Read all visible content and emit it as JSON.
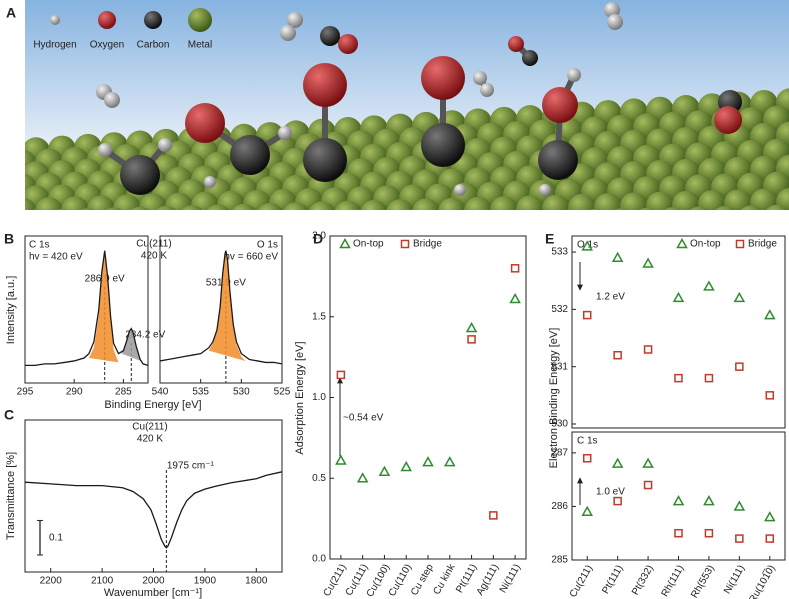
{
  "illustration": {
    "panel": "A",
    "legend": [
      "Hydrogen",
      "Oxygen",
      "Carbon",
      "Metal"
    ]
  },
  "chart_data": [
    {
      "type": "line",
      "panel": "B",
      "title": "C 1s",
      "subtitle": "hv = 420 eV",
      "annotations": [
        "Cu(211)",
        "420 K"
      ],
      "xlabel": "Binding Energy [eV]",
      "ylabel": "Intensity [a.u.]",
      "xlim": [
        295,
        282.5
      ],
      "xticks": [
        295,
        290,
        285
      ],
      "ylim": [
        0,
        1
      ],
      "peaks": [
        {
          "value": 286.9,
          "label": "286.9 eV"
        },
        {
          "value": 284.2,
          "label": "284.2 eV"
        }
      ],
      "components": [
        {
          "color": "#f28c28",
          "x": [
            288.5,
            288,
            287.5,
            287.2,
            286.9,
            286.6,
            286.3,
            286,
            285.5
          ],
          "values": [
            0.17,
            0.24,
            0.46,
            0.72,
            0.88,
            0.7,
            0.42,
            0.23,
            0.14
          ]
        },
        {
          "color": "#9a9a9a",
          "x": [
            285.2,
            284.8,
            284.5,
            284.2,
            283.9,
            283.6,
            283.2
          ],
          "values": [
            0.2,
            0.26,
            0.33,
            0.36,
            0.32,
            0.24,
            0.15
          ]
        }
      ],
      "series": [
        {
          "color": "#1a1a1a",
          "x": [
            295,
            294,
            293,
            292,
            291,
            290,
            289,
            288.5,
            288,
            287.5,
            287.2,
            286.9,
            286.6,
            286.3,
            286,
            285.5,
            285,
            284.7,
            284.4,
            284.2,
            284,
            283.7,
            283.3,
            283,
            282.5
          ],
          "values": [
            0.12,
            0.12,
            0.13,
            0.13,
            0.14,
            0.15,
            0.17,
            0.2,
            0.28,
            0.5,
            0.75,
            0.9,
            0.72,
            0.45,
            0.27,
            0.2,
            0.22,
            0.28,
            0.35,
            0.37,
            0.34,
            0.25,
            0.16,
            0.13,
            0.12
          ]
        }
      ]
    },
    {
      "type": "line",
      "title": "O 1s",
      "subtitle": "hv = 660 eV",
      "xlim": [
        540,
        525
      ],
      "xticks": [
        540,
        535,
        530,
        525
      ],
      "ylim": [
        0,
        1
      ],
      "peaks": [
        {
          "value": 531.9,
          "label": "531.9 eV"
        }
      ],
      "components": [
        {
          "color": "#f28c28",
          "x": [
            534,
            533.5,
            533,
            532.6,
            532.3,
            532,
            531.9,
            531.7,
            531.4,
            531,
            530.6,
            530,
            529.5
          ],
          "values": [
            0.22,
            0.27,
            0.35,
            0.5,
            0.72,
            0.86,
            0.88,
            0.82,
            0.6,
            0.38,
            0.26,
            0.18,
            0.15
          ]
        }
      ],
      "series": [
        {
          "color": "#1a1a1a",
          "x": [
            540,
            539,
            538,
            537,
            536,
            535,
            534,
            533.5,
            533,
            532.6,
            532.3,
            532,
            531.9,
            531.7,
            531.4,
            531,
            530.6,
            530,
            529,
            528,
            527,
            526,
            525
          ],
          "values": [
            0.15,
            0.16,
            0.17,
            0.18,
            0.19,
            0.2,
            0.24,
            0.28,
            0.36,
            0.52,
            0.74,
            0.88,
            0.9,
            0.84,
            0.62,
            0.4,
            0.28,
            0.2,
            0.16,
            0.15,
            0.14,
            0.14,
            0.13
          ]
        }
      ]
    },
    {
      "type": "line",
      "panel": "C",
      "annotations": [
        "Cu(211)",
        "420 K"
      ],
      "xlabel": "Wavenumber [cm⁻¹]",
      "ylabel": "Transmittance [%]",
      "xlim": [
        2250,
        1750
      ],
      "xticks": [
        2200,
        2100,
        2000,
        1900,
        1800
      ],
      "ylim": [
        -0.26,
        0.18
      ],
      "peaks": [
        {
          "value": 1975,
          "label": "1975 cm⁻¹"
        }
      ],
      "scalebar": 0.1,
      "series": [
        {
          "color": "#1a1a1a",
          "x": [
            2250,
            2200,
            2150,
            2100,
            2060,
            2040,
            2020,
            2005,
            1995,
            1985,
            1978,
            1975,
            1972,
            1965,
            1955,
            1945,
            1935,
            1920,
            1900,
            1880,
            1850,
            1800,
            1780,
            1750
          ],
          "values": [
            0,
            -0.005,
            -0.01,
            -0.01,
            -0.016,
            -0.027,
            -0.048,
            -0.08,
            -0.12,
            -0.165,
            -0.185,
            -0.19,
            -0.185,
            -0.16,
            -0.117,
            -0.08,
            -0.053,
            -0.032,
            -0.02,
            -0.012,
            -0.002,
            0.01,
            0.02,
            0.03
          ]
        }
      ]
    },
    {
      "type": "scatter",
      "panel": "D",
      "ylabel": "Adsorption Energy [eV]",
      "annotations": [
        "~0.54 eV"
      ],
      "categories": [
        "Cu(211)",
        "Cu(111)",
        "Cu(100)",
        "Cu(110)",
        "Cu step",
        "Cu kink",
        "Pt(111)",
        "Ag(111)",
        "Ni(111)"
      ],
      "ylim": [
        0,
        2
      ],
      "yticks": [
        {
          "value": 0,
          "label": "0.0"
        },
        0.5,
        {
          "value": 1,
          "label": "1.0"
        },
        1.5,
        {
          "value": 2,
          "label": "2.0"
        }
      ],
      "series": [
        {
          "name": "On-top",
          "color": "#2e8b2e",
          "marker": "triangle",
          "values": [
            0.61,
            0.5,
            0.54,
            0.57,
            0.6,
            0.6,
            1.43,
            null,
            1.61
          ]
        },
        {
          "name": "Bridge",
          "color": "#c0392b",
          "marker": "square",
          "values": [
            1.14,
            null,
            null,
            null,
            null,
            null,
            1.36,
            0.27,
            1.8
          ]
        }
      ]
    },
    {
      "type": "scatter",
      "panel": "E",
      "title": "O 1s",
      "ylabel": "Electron Binding Energy [eV]",
      "annotations": [
        "1.2 eV"
      ],
      "ylim": [
        529.93,
        533.28
      ],
      "yticks": [
        530,
        531,
        532,
        533
      ],
      "series": [
        {
          "name": "On-top",
          "color": "#2e8b2e",
          "marker": "triangle",
          "values": [
            533.1,
            532.9,
            532.8,
            532.2,
            532.4,
            532.2,
            531.9
          ]
        },
        {
          "name": "Bridge",
          "color": "#c0392b",
          "marker": "square",
          "values": [
            531.9,
            531.2,
            531.3,
            530.8,
            530.8,
            531.0,
            530.5
          ]
        }
      ]
    },
    {
      "type": "scatter",
      "title": "C 1s",
      "annotations": [
        "1.0 eV"
      ],
      "categories": [
        "Cu(211)",
        "Pt(111)",
        "Pt(332)",
        "Rh(111)",
        "Rh(553)",
        "Ni(111)",
        "Ru(101̅0)"
      ],
      "ylim": [
        285,
        287.39
      ],
      "yticks": [
        285,
        286,
        287
      ],
      "series": [
        {
          "color": "#2e8b2e",
          "marker": "triangle",
          "values": [
            285.9,
            286.8,
            286.8,
            286.1,
            286.1,
            286.0,
            285.8
          ]
        },
        {
          "color": "#c0392b",
          "marker": "square",
          "values": [
            286.9,
            286.1,
            286.4,
            285.5,
            285.5,
            285.4,
            285.4
          ]
        }
      ]
    }
  ]
}
